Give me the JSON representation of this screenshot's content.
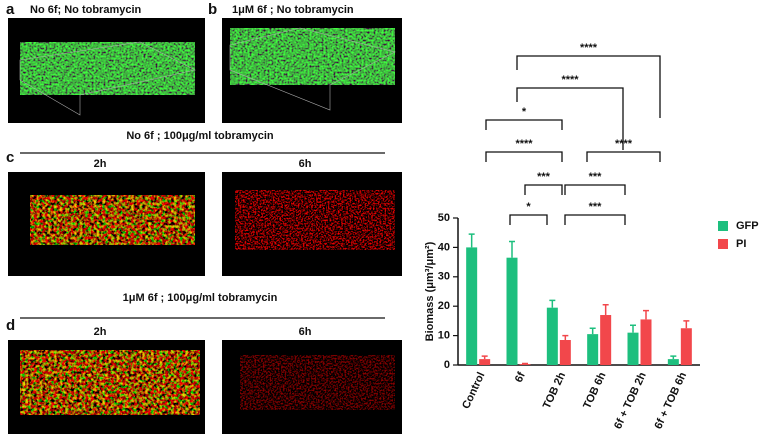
{
  "panels": [
    {
      "letter": "a",
      "title": "No 6f; No tobramycin"
    },
    {
      "letter": "b",
      "title": "1μM 6f ; No tobramycin"
    },
    {
      "letter": "c",
      "title": "No 6f ; 100μg/ml tobramycin",
      "times": [
        "2h",
        "6h"
      ]
    },
    {
      "letter": "d",
      "title": "1μM 6f ; 100μg/ml tobramycin",
      "times": [
        "2h",
        "6h"
      ]
    }
  ],
  "chart_data": {
    "type": "bar",
    "y_label": "Biomass (μm³/μm²)",
    "categories": [
      "Control",
      "6f",
      "TOB 2h",
      "TOB 6h",
      "6f + TOB 2h",
      "6f + TOB 6h"
    ],
    "series": [
      {
        "name": "GFP",
        "color": "#1dbf7e",
        "values": [
          40,
          36.5,
          19.5,
          10.5,
          11,
          2
        ],
        "errors": [
          4.5,
          5.5,
          2.5,
          2,
          2.5,
          1
        ]
      },
      {
        "name": "PI",
        "color": "#f2474b",
        "values": [
          2,
          0.3,
          8.5,
          17,
          15.5,
          12.5
        ],
        "errors": [
          1,
          0.2,
          1.5,
          3.5,
          3,
          2.5
        ]
      }
    ],
    "ylim": [
      0,
      50
    ],
    "yticks": [
      0,
      10,
      20,
      30,
      40,
      50
    ],
    "annotations": [
      "****",
      "****",
      "*",
      "****",
      "***",
      "****",
      "***",
      "*",
      "***"
    ]
  }
}
